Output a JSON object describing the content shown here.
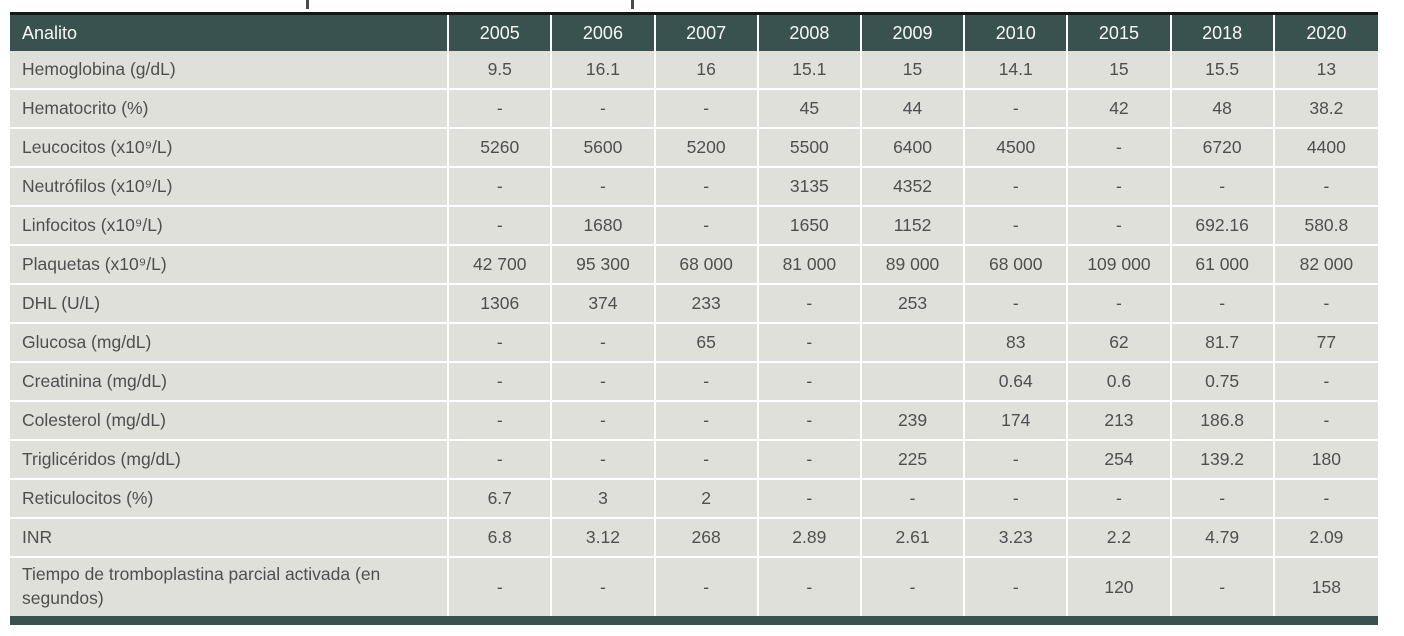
{
  "colors": {
    "header_bg": "#3a524f",
    "header_text": "#f6f8f7",
    "body_bg": "#dfe0da",
    "body_text": "#4f4f4f",
    "top_rule": "#161616",
    "separator": "#ffffff"
  },
  "table": {
    "columns": [
      "Analito",
      "2005",
      "2006",
      "2007",
      "2008",
      "2009",
      "2010",
      "2015",
      "2018",
      "2020"
    ],
    "rows": [
      {
        "label": "Hemoglobina (g/dL)",
        "values": [
          "9.5",
          "16.1",
          "16",
          "15.1",
          "15",
          "14.1",
          "15",
          "15.5",
          "13"
        ]
      },
      {
        "label": "Hematocrito (%)",
        "values": [
          "-",
          "-",
          "-",
          "45",
          "44",
          "-",
          "42",
          "48",
          "38.2"
        ]
      },
      {
        "label": "Leucocitos (x10⁹/L)",
        "values": [
          "5260",
          "5600",
          "5200",
          "5500",
          "6400",
          "4500",
          "-",
          "6720",
          "4400"
        ]
      },
      {
        "label": "Neutrófilos (x10⁹/L)",
        "values": [
          "-",
          "-",
          "-",
          "3135",
          "4352",
          "-",
          "-",
          "-",
          "-"
        ]
      },
      {
        "label": "Linfocitos (x10⁹/L)",
        "values": [
          "-",
          "1680",
          "-",
          "1650",
          "1152",
          "-",
          "-",
          "692.16",
          "580.8"
        ]
      },
      {
        "label": "Plaquetas (x10⁹/L)",
        "values": [
          "42 700",
          "95 300",
          "68 000",
          "81 000",
          "89 000",
          "68 000",
          "109 000",
          "61 000",
          "82 000"
        ]
      },
      {
        "label": "DHL (U/L)",
        "values": [
          "1306",
          "374",
          "233",
          "-",
          "253",
          "-",
          "-",
          "-",
          "-"
        ]
      },
      {
        "label": "Glucosa (mg/dL)",
        "values": [
          "-",
          "-",
          "65",
          "-",
          "",
          "83",
          "62",
          "81.7",
          "77"
        ]
      },
      {
        "label": "Creatinina (mg/dL)",
        "values": [
          "-",
          "-",
          "-",
          "-",
          "",
          "0.64",
          "0.6",
          "0.75",
          "-"
        ]
      },
      {
        "label": "Colesterol (mg/dL)",
        "values": [
          "-",
          "-",
          "-",
          "-",
          "239",
          "174",
          "213",
          "186.8",
          "-"
        ]
      },
      {
        "label": "Triglicéridos (mg/dL)",
        "values": [
          "-",
          "-",
          "-",
          "-",
          "225",
          "-",
          "254",
          "139.2",
          "180"
        ]
      },
      {
        "label": "Reticulocitos (%)",
        "values": [
          "6.7",
          "3",
          "2",
          "-",
          "-",
          "-",
          "-",
          "-",
          "-"
        ]
      },
      {
        "label": "INR",
        "values": [
          "6.8",
          "3.12",
          "268",
          "2.89",
          "2.61",
          "3.23",
          "2.2",
          "4.79",
          "2.09"
        ]
      },
      {
        "label": "Tiempo de tromboplastina parcial activada (en segundos)",
        "values": [
          "-",
          "-",
          "-",
          "-",
          "-",
          "-",
          "120",
          "-",
          "158"
        ]
      }
    ]
  }
}
